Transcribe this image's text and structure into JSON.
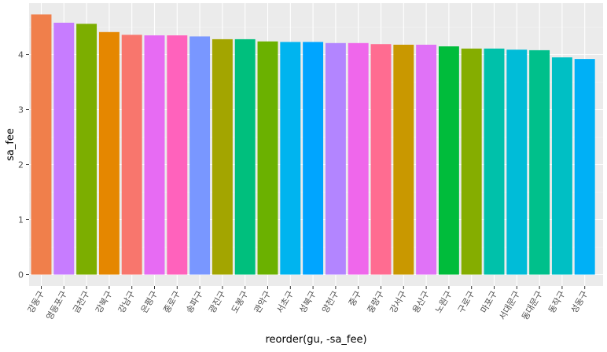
{
  "chart_data": {
    "type": "bar",
    "xlabel": "reorder(gu, -sa_fee)",
    "ylabel": "sa_fee",
    "ylim": [
      0,
      4.85
    ],
    "yticks": [
      0,
      1,
      2,
      3,
      4
    ],
    "ytick_labels": [
      "0",
      "1",
      "2",
      "3",
      "4"
    ],
    "grid": true,
    "legend": "none",
    "categories": [
      "강동구",
      "영등포구",
      "금천구",
      "강북구",
      "강남구",
      "은평구",
      "종로구",
      "송파구",
      "광진구",
      "도봉구",
      "관악구",
      "서초구",
      "성북구",
      "양천구",
      "중구",
      "중랑구",
      "강서구",
      "용산구",
      "노원구",
      "구로구",
      "마포구",
      "서대문구",
      "동대문구",
      "동작구",
      "성동구"
    ],
    "values": [
      4.73,
      4.58,
      4.56,
      4.41,
      4.36,
      4.35,
      4.35,
      4.33,
      4.28,
      4.28,
      4.24,
      4.23,
      4.23,
      4.21,
      4.21,
      4.19,
      4.18,
      4.18,
      4.15,
      4.11,
      4.11,
      4.09,
      4.08,
      3.95,
      3.92
    ],
    "colors": [
      "#F07F4B",
      "#C77CFF",
      "#7CAE00",
      "#E58700",
      "#F8766D",
      "#E76BF3",
      "#FF62BC",
      "#7997FF",
      "#A3A500",
      "#00BF7D",
      "#6BB100",
      "#00B4EF",
      "#00A5FF",
      "#B385FF",
      "#EF67EB",
      "#FF6C91",
      "#C99800",
      "#E072F7",
      "#00BC3B",
      "#85AD00",
      "#00C1AA",
      "#00BCD8",
      "#00C08B",
      "#00BFC4",
      "#00B0F6"
    ]
  }
}
